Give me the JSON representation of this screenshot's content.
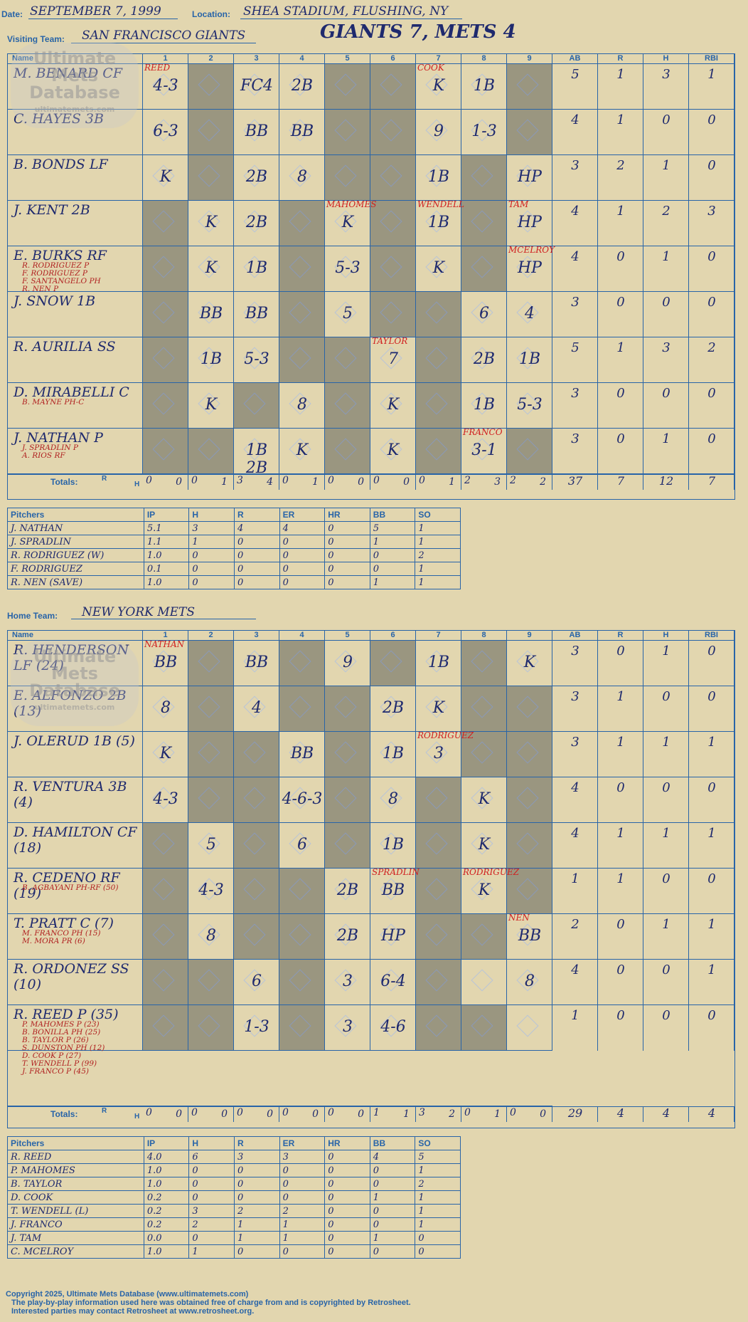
{
  "header": {
    "date_label": "Date:",
    "date": "SEPTEMBER 7, 1999",
    "location_label": "Location:",
    "location": "SHEA STADIUM, FLUSHING, NY",
    "title": "GIANTS 7, METS 4"
  },
  "visitors": {
    "label": "Visiting Team:",
    "team": "SAN FRANCISCO GIANTS",
    "cols": [
      "Name",
      "1",
      "2",
      "3",
      "4",
      "5",
      "6",
      "7",
      "8",
      "9",
      "AB",
      "R",
      "H",
      "RBI"
    ],
    "batters": [
      {
        "name": "M. BENARD CF",
        "subs": [],
        "stats": [
          "5",
          "1",
          "3",
          "1"
        ],
        "plays": {
          "1": "4-3",
          "3": "FC4",
          "4": "2B",
          "7": "K",
          "8": "1B"
        }
      },
      {
        "name": "C. HAYES 3B",
        "subs": [],
        "stats": [
          "4",
          "1",
          "0",
          "0"
        ],
        "plays": {
          "1": "6-3",
          "3": "BB",
          "4": "BB",
          "7": "9",
          "8": "1-3"
        }
      },
      {
        "name": "B. BONDS LF",
        "subs": [],
        "stats": [
          "3",
          "2",
          "1",
          "0"
        ],
        "plays": {
          "1": "K",
          "3": "2B",
          "4": "8",
          "7": "1B",
          "9": "HP"
        }
      },
      {
        "name": "J. KENT 2B",
        "subs": [],
        "stats": [
          "4",
          "1",
          "2",
          "3"
        ],
        "plays": {
          "2": "K",
          "3": "2B",
          "5": "K",
          "7": "1B",
          "9": "HP"
        }
      },
      {
        "name": "E. BURKS RF",
        "subs": [
          "R. RODRIGUEZ P",
          "F. RODRIGUEZ P",
          "F. SANTANGELO PH",
          "R. NEN P"
        ],
        "stats": [
          "4",
          "0",
          "1",
          "0"
        ],
        "plays": {
          "2": "K",
          "3": "1B",
          "5": "5-3",
          "7": "K",
          "9": "HP"
        }
      },
      {
        "name": "J. SNOW 1B",
        "subs": [],
        "stats": [
          "3",
          "0",
          "0",
          "0"
        ],
        "plays": {
          "2": "BB",
          "3": "BB",
          "5": "5",
          "8": "6",
          "9": "4"
        }
      },
      {
        "name": "R. AURILIA SS",
        "subs": [],
        "stats": [
          "5",
          "1",
          "3",
          "2"
        ],
        "plays": {
          "2": "1B",
          "3": "5-3",
          "6": "7",
          "8": "2B",
          "9": "1B"
        }
      },
      {
        "name": "D. MIRABELLI C",
        "subs": [
          "B. MAYNE PH-C"
        ],
        "stats": [
          "3",
          "0",
          "0",
          "0"
        ],
        "plays": {
          "2": "K",
          "4": "8",
          "6": "K",
          "8": "1B",
          "9": "5-3"
        }
      },
      {
        "name": "J. NATHAN P",
        "subs": [
          "J. SPRADLIN P",
          "A. RIOS RF"
        ],
        "stats": [
          "3",
          "0",
          "1",
          "0"
        ],
        "plays": {
          "3": "1B 2B",
          "4": "K",
          "6": "K",
          "8": "3-1"
        }
      }
    ],
    "totals_label": "Totals:",
    "rh": [
      "R",
      "H"
    ],
    "inning_totals": [
      [
        "0",
        "0"
      ],
      [
        "0",
        "1"
      ],
      [
        "3",
        "4"
      ],
      [
        "0",
        "1"
      ],
      [
        "0",
        "0"
      ],
      [
        "0",
        "0"
      ],
      [
        "0",
        "1"
      ],
      [
        "2",
        "3"
      ],
      [
        "2",
        "2"
      ]
    ],
    "game_totals": [
      "37",
      "7",
      "12",
      "7"
    ],
    "pitchers": {
      "cols": [
        "Pitchers",
        "IP",
        "H",
        "R",
        "ER",
        "HR",
        "BB",
        "SO"
      ],
      "rows": [
        [
          "J. NATHAN",
          "5.1",
          "3",
          "4",
          "4",
          "0",
          "5",
          "1"
        ],
        [
          "J. SPRADLIN",
          "1.1",
          "1",
          "0",
          "0",
          "0",
          "1",
          "1"
        ],
        [
          "R. RODRIGUEZ (W)",
          "1.0",
          "0",
          "0",
          "0",
          "0",
          "0",
          "2"
        ],
        [
          "F. RODRIGUEZ",
          "0.1",
          "0",
          "0",
          "0",
          "0",
          "0",
          "1"
        ],
        [
          "R. NEN (SAVE)",
          "1.0",
          "0",
          "0",
          "0",
          "0",
          "1",
          "1"
        ]
      ]
    }
  },
  "home": {
    "label": "Home Team:",
    "team": "NEW YORK METS",
    "cols": [
      "Name",
      "1",
      "2",
      "3",
      "4",
      "5",
      "6",
      "7",
      "8",
      "9",
      "AB",
      "R",
      "H",
      "RBI"
    ],
    "batters": [
      {
        "name": "R. HENDERSON LF (24)",
        "subs": [],
        "stats": [
          "3",
          "0",
          "1",
          "0"
        ],
        "plays": {
          "1": "BB",
          "3": "BB",
          "5": "9",
          "7": "1B",
          "9": "K"
        }
      },
      {
        "name": "E. ALFONZO 2B (13)",
        "subs": [],
        "stats": [
          "3",
          "1",
          "0",
          "0"
        ],
        "plays": {
          "1": "8",
          "3": "4",
          "6": "2B",
          "7": "K"
        }
      },
      {
        "name": "J. OLERUD 1B (5)",
        "subs": [],
        "stats": [
          "3",
          "1",
          "1",
          "1"
        ],
        "plays": {
          "1": "K",
          "4": "BB",
          "6": "1B",
          "7": "3"
        }
      },
      {
        "name": "R. VENTURA 3B (4)",
        "subs": [],
        "stats": [
          "4",
          "0",
          "0",
          "0"
        ],
        "plays": {
          "1": "4-3",
          "4": "4-6-3",
          "6": "8",
          "8": "K"
        }
      },
      {
        "name": "D. HAMILTON CF (18)",
        "subs": [],
        "stats": [
          "4",
          "1",
          "1",
          "1"
        ],
        "plays": {
          "2": "5",
          "4": "6",
          "6": "1B",
          "8": "K"
        }
      },
      {
        "name": "R. CEDENO RF (19)",
        "subs": [
          "B. AGBAYANI PH-RF (50)"
        ],
        "stats": [
          "1",
          "1",
          "0",
          "0"
        ],
        "plays": {
          "2": "4-3",
          "5": "2B",
          "6": "BB",
          "8": "K"
        }
      },
      {
        "name": "T. PRATT C (7)",
        "subs": [
          "M. FRANCO PH (15)",
          "M. MORA PR (6)"
        ],
        "stats": [
          "2",
          "0",
          "1",
          "1"
        ],
        "plays": {
          "2": "8",
          "5": "2B",
          "6": "HP",
          "9": "BB"
        }
      },
      {
        "name": "R. ORDONEZ SS (10)",
        "subs": [],
        "stats": [
          "4",
          "0",
          "0",
          "1"
        ],
        "plays": {
          "3": "6",
          "5": "3",
          "6": "6-4",
          "9": "8"
        }
      },
      {
        "name": "R. REED P (35)",
        "subs": [
          "P. MAHOMES P (23)",
          "B. BONILLA PH (25)",
          "B. TAYLOR P (26)",
          "S. DUNSTON PH (12)",
          "D. COOK P (27)",
          "T. WENDELL P (99)",
          "J. FRANCO P (45)"
        ],
        "stats": [
          "1",
          "0",
          "0",
          "0"
        ],
        "plays": {
          "3": "1-3",
          "5": "3",
          "6": "4-6"
        }
      }
    ],
    "totals_label": "Totals:",
    "rh": [
      "R",
      "H"
    ],
    "inning_totals": [
      [
        "0",
        "0"
      ],
      [
        "0",
        "0"
      ],
      [
        "0",
        "0"
      ],
      [
        "0",
        "0"
      ],
      [
        "0",
        "0"
      ],
      [
        "1",
        "1"
      ],
      [
        "3",
        "2"
      ],
      [
        "0",
        "1"
      ],
      [
        "0",
        "0"
      ]
    ],
    "game_totals": [
      "29",
      "4",
      "4",
      "4"
    ],
    "pitchers": {
      "cols": [
        "Pitchers",
        "IP",
        "H",
        "R",
        "ER",
        "HR",
        "BB",
        "SO"
      ],
      "rows": [
        [
          "R. REED",
          "4.0",
          "6",
          "3",
          "3",
          "0",
          "4",
          "5"
        ],
        [
          "P. MAHOMES",
          "1.0",
          "0",
          "0",
          "0",
          "0",
          "0",
          "1"
        ],
        [
          "B. TAYLOR",
          "1.0",
          "0",
          "0",
          "0",
          "0",
          "0",
          "2"
        ],
        [
          "D. COOK",
          "0.2",
          "0",
          "0",
          "0",
          "0",
          "1",
          "1"
        ],
        [
          "T. WENDELL (L)",
          "0.2",
          "3",
          "2",
          "2",
          "0",
          "0",
          "1"
        ],
        [
          "J. FRANCO",
          "0.2",
          "2",
          "1",
          "1",
          "0",
          "0",
          "1"
        ],
        [
          "J. TAM",
          "0.0",
          "0",
          "1",
          "1",
          "0",
          "1",
          "0"
        ],
        [
          "C. MCELROY",
          "1.0",
          "1",
          "0",
          "0",
          "0",
          "0",
          "0"
        ]
      ]
    }
  },
  "pitcher_notes_visitors": [
    "REED",
    "COOK",
    "MAHOMES",
    "WENDELL",
    "TAM",
    "MCELROY",
    "TAYLOR",
    "FRANCO"
  ],
  "pitcher_notes_home": [
    "NATHAN",
    "RODRIGUEZ",
    "SPRADLIN",
    "RODRIGUEZ",
    "NEN"
  ],
  "logo": [
    "Ultimate",
    "Mets",
    "Database",
    "ultimatemets.com"
  ],
  "footer": [
    "Copyright 2025, Ultimate Mets Database (www.ultimatemets.com)",
    "The play-by-play information used here was obtained free of charge from and is copyrighted by Retrosheet.",
    "Interested parties may contact Retrosheet at www.retrosheet.org."
  ]
}
